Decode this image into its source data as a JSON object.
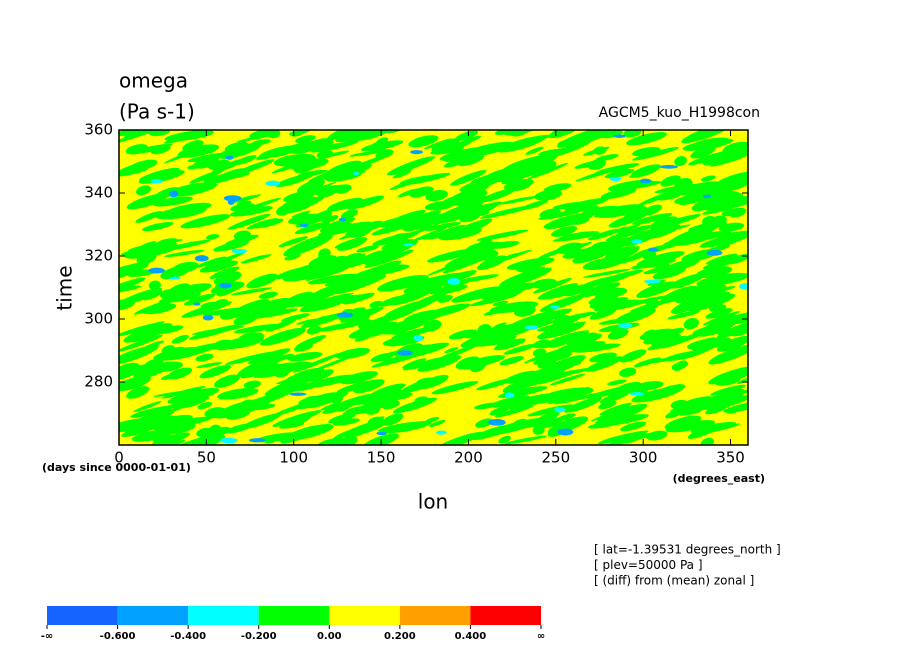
{
  "chart_data": {
    "type": "contour",
    "title": "omega",
    "subtitle": "(Pa s-1)",
    "run_label": "AGCM5_kuo_H1998con",
    "y_label": "time",
    "x_label": "lon",
    "y_units": "(days since 0000-01-01)",
    "x_units": "(degrees_east)",
    "annotations": [
      "[ lat=-1.39531 degrees_north ]",
      "[ plev=50000 Pa ]",
      "[ (diff) from (mean) zonal ]"
    ],
    "xlim": [
      0,
      360
    ],
    "xticks": [
      0,
      50,
      100,
      150,
      200,
      250,
      300,
      350
    ],
    "ylim": [
      260,
      360
    ],
    "yticks": [
      280,
      300,
      320,
      340,
      360
    ],
    "colorbar": {
      "colors": [
        "#1464ff",
        "#00a0ff",
        "#00ffff",
        "#00ff00",
        "#ffff00",
        "#ffa000",
        "#ff0000"
      ],
      "labels": [
        "-∞",
        "-0.600",
        "-0.400",
        "-0.200",
        "0.00",
        "0.200",
        "0.400",
        "∞"
      ]
    }
  }
}
